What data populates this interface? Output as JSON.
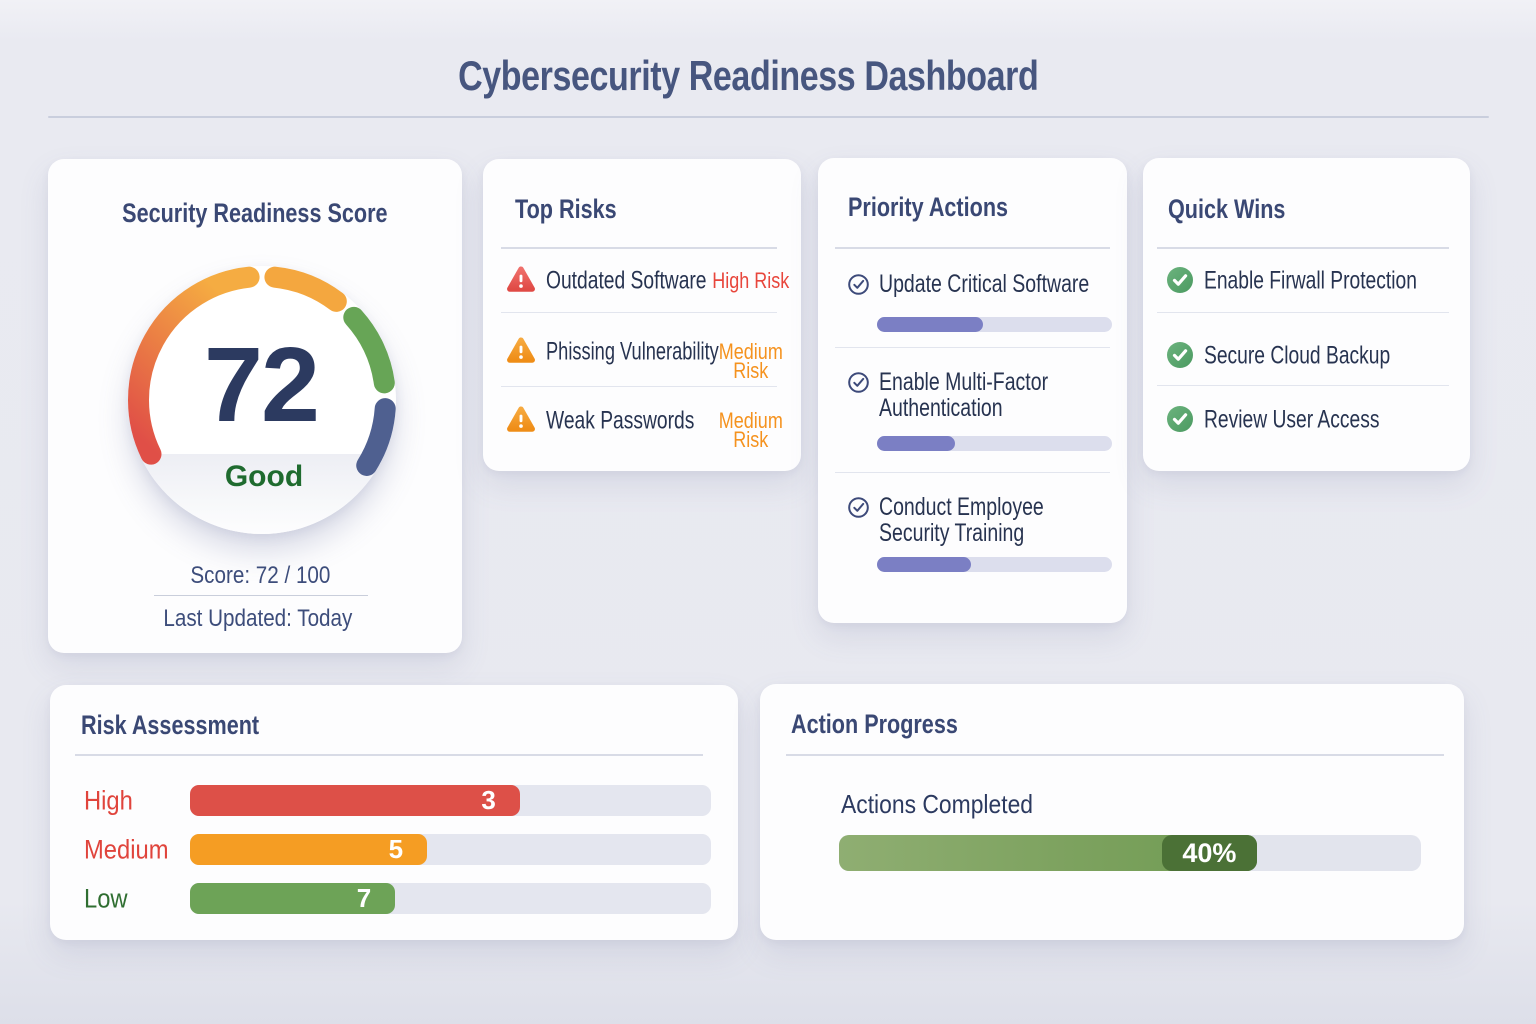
{
  "header": {
    "title": "Cybersecurity Readiness Dashboard"
  },
  "score_card": {
    "title": "Security Readiness Score",
    "score": "72",
    "rating": "Good",
    "score_line": "Score: 72 / 100",
    "updated_line": "Last Updated: Today",
    "rating_color": "#1f6b2f",
    "score_color": "#2c3a60",
    "gauge": {
      "segments": [
        {
          "from": -116,
          "to": -6,
          "stroke": "gradient",
          "gradient_from": "#e04f47",
          "gradient_to": "#f5ac42"
        },
        {
          "from": 6,
          "to": 37,
          "stroke": "#f4a73f"
        },
        {
          "from": 48,
          "to": 82,
          "stroke": "#67a556"
        },
        {
          "from": 94,
          "to": 122,
          "stroke": "#4f6090"
        }
      ],
      "radius": 123.5,
      "stroke_width": 21
    }
  },
  "top_risks": {
    "title": "Top Risks",
    "items": [
      {
        "label": "Outdated Software",
        "level": "High Risk",
        "level_color": "#e8463c",
        "icon_color_top": "#ef6f6b",
        "icon_color_bottom": "#e04a45"
      },
      {
        "label": "Phissing Vulnerability",
        "level": "Medium Risk",
        "level_color": "#f5921e",
        "icon_color_top": "#f6a93f",
        "icon_color_bottom": "#ef8d17"
      },
      {
        "label": "Weak Passwords",
        "level": "Medium Risk",
        "level_color": "#f5921e",
        "icon_color_top": "#f6a93f",
        "icon_color_bottom": "#ef8d17"
      }
    ]
  },
  "priority_actions": {
    "title": "Priority Actions",
    "accent": "#7b7fc4",
    "items": [
      {
        "label": "Update Critical Software",
        "progress": 45
      },
      {
        "label": "Enable Multi-Factor Authentication",
        "progress": 33
      },
      {
        "label": "Conduct Employee Security Training",
        "progress": 40
      }
    ]
  },
  "quick_wins": {
    "title": "Quick Wins",
    "check_color": "#57a26b",
    "items": [
      {
        "label": "Enable Firwall Protection"
      },
      {
        "label": "Secure Cloud Backup"
      },
      {
        "label": "Review User Access"
      }
    ]
  },
  "risk_assessment": {
    "title": "Risk Assessment",
    "rows": [
      {
        "label": "High",
        "value": "3",
        "fill_pct": 63.3,
        "bar_color": "#dd5048",
        "label_color": "#e0443c"
      },
      {
        "label": "Medium",
        "value": "5",
        "fill_pct": 45.5,
        "bar_color": "#f59d23",
        "label_color": "#e0443c"
      },
      {
        "label": "Low",
        "value": "7",
        "fill_pct": 39.4,
        "bar_color": "#6da357",
        "label_color": "#2f6e31"
      }
    ]
  },
  "action_progress": {
    "title": "Action Progress",
    "label": "Actions Completed",
    "percent_label": "40%",
    "fill_pct": 71.8,
    "pill_width": 95,
    "fill_color": "#7da25f",
    "pill_color": "#4b7136"
  },
  "chart_data": [
    {
      "type": "gauge",
      "title": "Security Readiness Score",
      "value": 72,
      "max": 100,
      "label": "Good"
    },
    {
      "type": "bar",
      "title": "Risk Assessment",
      "categories": [
        "High",
        "Medium",
        "Low"
      ],
      "values": [
        3,
        5,
        7
      ]
    },
    {
      "type": "progress",
      "title": "Action Progress",
      "label": "Actions Completed",
      "percent": 40
    }
  ]
}
